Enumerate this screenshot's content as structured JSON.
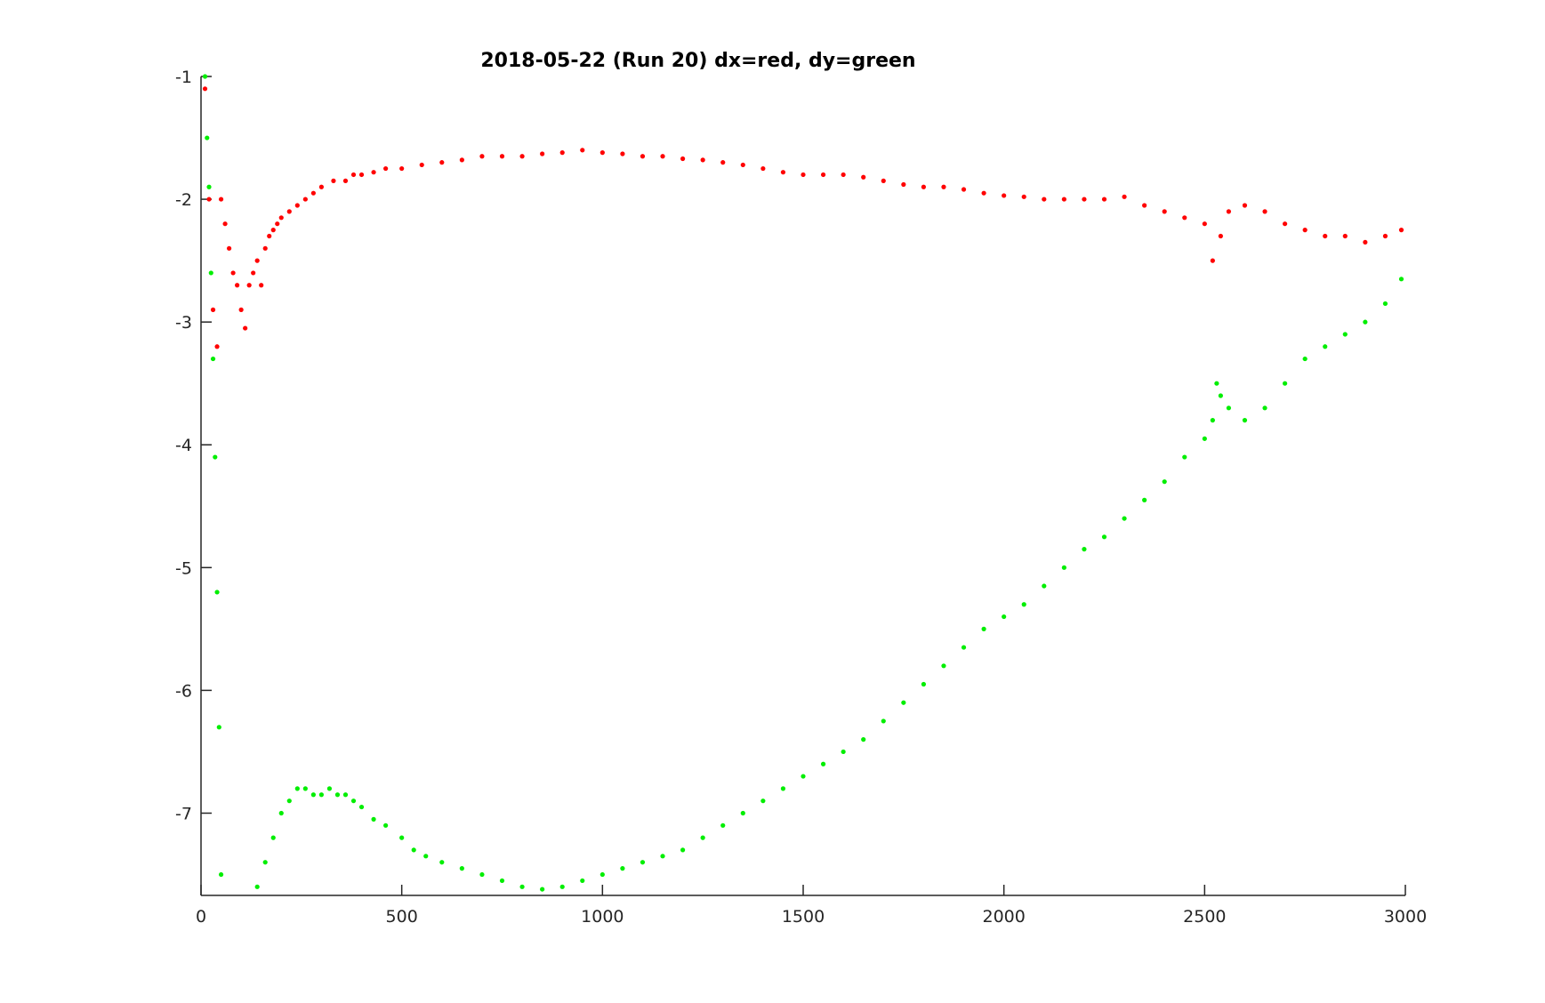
{
  "chart_data": {
    "type": "scatter",
    "title": "2018-05-22 (Run 20)   dx=red, dy=green",
    "xlabel": "",
    "ylabel": "",
    "xlim": [
      0,
      3000
    ],
    "ylim": [
      -7.67,
      -1
    ],
    "grid": false,
    "legend": "none",
    "x_ticks": [
      0,
      500,
      1000,
      1500,
      2000,
      2500,
      3000
    ],
    "x_tick_labels": [
      "0",
      "500",
      "1000",
      "1500",
      "2000",
      "2500",
      "3000"
    ],
    "y_ticks": [
      -1,
      -2,
      -3,
      -4,
      -5,
      -6,
      -7
    ],
    "y_tick_labels": [
      "-1",
      "-2",
      "-3",
      "-4",
      "-5",
      "-6",
      "-7"
    ],
    "series": [
      {
        "color": "#ff0000",
        "x": [
          10,
          20,
          30,
          40,
          50,
          60,
          70,
          80,
          90,
          100,
          110,
          120,
          130,
          140,
          150,
          160,
          170,
          180,
          190,
          200,
          220,
          240,
          260,
          280,
          300,
          330,
          360,
          380,
          400,
          430,
          460,
          500,
          550,
          600,
          650,
          700,
          750,
          800,
          850,
          900,
          950,
          1000,
          1050,
          1100,
          1150,
          1200,
          1250,
          1300,
          1350,
          1400,
          1450,
          1500,
          1550,
          1600,
          1650,
          1700,
          1750,
          1800,
          1850,
          1900,
          1950,
          2000,
          2050,
          2100,
          2150,
          2200,
          2250,
          2300,
          2350,
          2400,
          2450,
          2500,
          2520,
          2540,
          2560,
          2600,
          2650,
          2700,
          2750,
          2800,
          2850,
          2900,
          2950,
          2990
        ],
        "y": [
          -1.1,
          -2.0,
          -2.9,
          -3.2,
          -2.0,
          -2.2,
          -2.4,
          -2.6,
          -2.7,
          -2.9,
          -3.05,
          -2.7,
          -2.6,
          -2.5,
          -2.7,
          -2.4,
          -2.3,
          -2.25,
          -2.2,
          -2.15,
          -2.1,
          -2.05,
          -2.0,
          -1.95,
          -1.9,
          -1.85,
          -1.85,
          -1.8,
          -1.8,
          -1.78,
          -1.75,
          -1.75,
          -1.72,
          -1.7,
          -1.68,
          -1.65,
          -1.65,
          -1.65,
          -1.63,
          -1.62,
          -1.6,
          -1.62,
          -1.63,
          -1.65,
          -1.65,
          -1.67,
          -1.68,
          -1.7,
          -1.72,
          -1.75,
          -1.78,
          -1.8,
          -1.8,
          -1.8,
          -1.82,
          -1.85,
          -1.88,
          -1.9,
          -1.9,
          -1.92,
          -1.95,
          -1.97,
          -1.98,
          -2.0,
          -2.0,
          -2.0,
          -2.0,
          -1.98,
          -2.05,
          -2.1,
          -2.15,
          -2.2,
          -2.5,
          -2.3,
          -2.1,
          -2.05,
          -2.1,
          -2.2,
          -2.25,
          -2.3,
          -2.3,
          -2.35,
          -2.3,
          -2.25
        ]
      },
      {
        "color": "#00ee00",
        "x": [
          10,
          15,
          20,
          25,
          30,
          35,
          40,
          45,
          50,
          140,
          160,
          180,
          200,
          220,
          240,
          260,
          280,
          300,
          320,
          340,
          360,
          380,
          400,
          430,
          460,
          500,
          530,
          560,
          600,
          650,
          700,
          750,
          800,
          850,
          900,
          950,
          1000,
          1050,
          1100,
          1150,
          1200,
          1250,
          1300,
          1350,
          1400,
          1450,
          1500,
          1550,
          1600,
          1650,
          1700,
          1750,
          1800,
          1850,
          1900,
          1950,
          2000,
          2050,
          2100,
          2150,
          2200,
          2250,
          2300,
          2350,
          2400,
          2450,
          2500,
          2520,
          2530,
          2540,
          2560,
          2600,
          2650,
          2700,
          2750,
          2800,
          2850,
          2900,
          2950,
          2990
        ],
        "y": [
          -1.0,
          -1.5,
          -1.9,
          -2.6,
          -3.3,
          -4.1,
          -5.2,
          -6.3,
          -7.5,
          -7.6,
          -7.4,
          -7.2,
          -7.0,
          -6.9,
          -6.8,
          -6.8,
          -6.85,
          -6.85,
          -6.8,
          -6.85,
          -6.85,
          -6.9,
          -6.95,
          -7.05,
          -7.1,
          -7.2,
          -7.3,
          -7.35,
          -7.4,
          -7.45,
          -7.5,
          -7.55,
          -7.6,
          -7.62,
          -7.6,
          -7.55,
          -7.5,
          -7.45,
          -7.4,
          -7.35,
          -7.3,
          -7.2,
          -7.1,
          -7.0,
          -6.9,
          -6.8,
          -6.7,
          -6.6,
          -6.5,
          -6.4,
          -6.25,
          -6.1,
          -5.95,
          -5.8,
          -5.65,
          -5.5,
          -5.4,
          -5.3,
          -5.15,
          -5.0,
          -4.85,
          -4.75,
          -4.6,
          -4.45,
          -4.3,
          -4.1,
          -3.95,
          -3.8,
          -3.5,
          -3.6,
          -3.7,
          -3.8,
          -3.7,
          -3.5,
          -3.3,
          -3.2,
          -3.1,
          -3.0,
          -2.85,
          -2.65
        ]
      }
    ]
  }
}
